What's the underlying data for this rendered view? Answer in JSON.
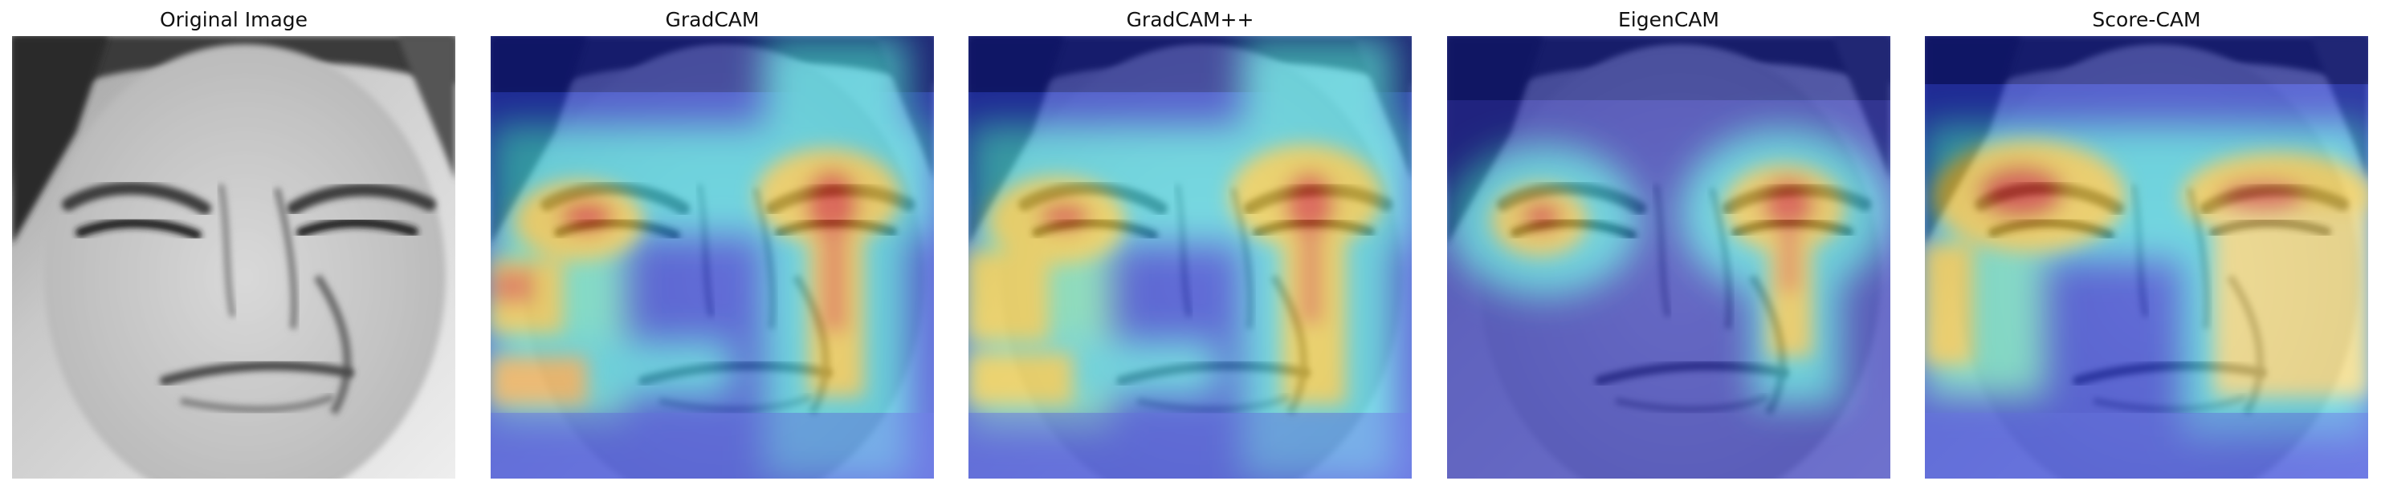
{
  "panels": [
    {
      "id": "original",
      "title": "Original Image"
    },
    {
      "id": "gradcam",
      "title": "GradCAM"
    },
    {
      "id": "gradcampp",
      "title": "GradCAM++"
    },
    {
      "id": "eigencam",
      "title": "EigenCAM"
    },
    {
      "id": "scorecam",
      "title": "Score-CAM"
    }
  ],
  "colors": {
    "background": "#ffffff",
    "title_text": "#111111",
    "jet_low": "#00008f",
    "jet_mid": "#40e0d0",
    "jet_high": "#d7191c"
  }
}
